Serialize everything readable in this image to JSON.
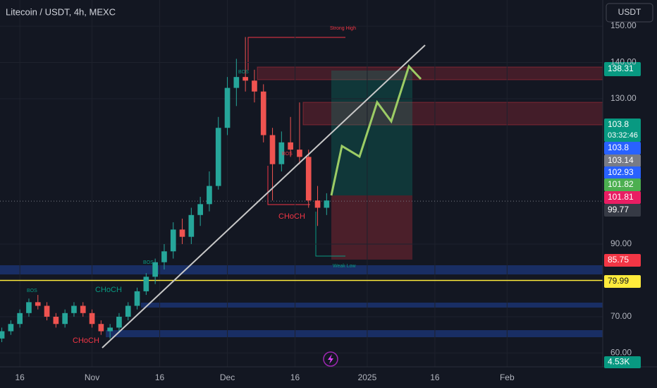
{
  "chart_data": {
    "type": "candlestick",
    "title": "Litecoin / USDT, 4h, MEXC",
    "currency": "USDT",
    "x": [
      -4,
      -2,
      0,
      2,
      4,
      6,
      8,
      10,
      12,
      14,
      16,
      18,
      20,
      22,
      24,
      26,
      28,
      30,
      32,
      34,
      36,
      38,
      40,
      42,
      44,
      46,
      48,
      50,
      52,
      54,
      56,
      58,
      60,
      62,
      64,
      66,
      68
    ],
    "open": [
      64,
      66,
      68,
      71,
      74,
      73,
      70,
      68,
      71,
      73,
      71,
      68,
      66,
      67,
      70,
      73,
      77,
      81,
      85,
      88,
      94,
      92,
      98,
      101,
      106,
      122,
      133,
      136,
      135,
      132,
      120,
      112,
      118,
      116,
      114,
      102,
      100
    ],
    "high": [
      67,
      69,
      72,
      75,
      76,
      74,
      71,
      72,
      74,
      74,
      72,
      69,
      68,
      71,
      74,
      78,
      82,
      86,
      90,
      96,
      97,
      100,
      103,
      110,
      125,
      136,
      141,
      147,
      138,
      134,
      122,
      121,
      125,
      129,
      116,
      106,
      104
    ],
    "low": [
      63,
      65,
      67,
      70,
      72,
      69,
      67,
      67,
      70,
      70,
      67,
      65,
      64,
      66,
      69,
      72,
      76,
      79,
      83,
      86,
      90,
      90,
      95,
      99,
      105,
      120,
      128,
      132,
      129,
      118,
      102,
      110,
      114,
      112,
      100,
      95,
      98
    ],
    "close": [
      66,
      68,
      71,
      74,
      73,
      70,
      68,
      71,
      73,
      71,
      68,
      66,
      67,
      70,
      73,
      77,
      81,
      85,
      88,
      94,
      92,
      98,
      101,
      106,
      122,
      133,
      136,
      135,
      132,
      120,
      112,
      118,
      116,
      114,
      102,
      100,
      102
    ],
    "up_color": "#26a69a",
    "down_color": "#ef5350",
    "xlim": [
      -4.4,
      129.2
    ],
    "xticks": [
      {
        "value": 0,
        "label": "16"
      },
      {
        "value": 16,
        "label": "Nov"
      },
      {
        "value": 31,
        "label": "16"
      },
      {
        "value": 46,
        "label": "Dec"
      },
      {
        "value": 61,
        "label": "16"
      },
      {
        "value": 77,
        "label": "2025"
      },
      {
        "value": 92,
        "label": "16"
      },
      {
        "value": 108,
        "label": "Feb"
      }
    ],
    "ylim": [
      56.2,
      157.2
    ],
    "yticks": [
      {
        "value": 60,
        "label": "60.00"
      },
      {
        "value": 70,
        "label": "70.00"
      },
      {
        "value": 90,
        "label": "90.00"
      },
      {
        "value": 130,
        "label": "130.00"
      },
      {
        "value": 140,
        "label": "140.00"
      },
      {
        "value": 150,
        "label": "150.00"
      }
    ],
    "grid": true,
    "price_tags": [
      {
        "value": 138.31,
        "color": "#089981"
      },
      {
        "value": 103.8,
        "color": "#089981",
        "countdown": "03:32:46"
      },
      {
        "value": 103.8,
        "color": "#2962ff"
      },
      {
        "value": 103.14,
        "color": "#787b86"
      },
      {
        "value": 102.93,
        "color": "#2962ff"
      },
      {
        "value": 101.82,
        "color": "#4caf50"
      },
      {
        "value": 101.81,
        "color": "#e91e63"
      },
      {
        "value": 99.77,
        "color": "#363a45"
      },
      {
        "value": 85.75,
        "color": "#f23645"
      },
      {
        "value": 79.99,
        "color": "#ffeb3b"
      },
      {
        "value": 4530,
        "label": "4.53K",
        "color": "#089981"
      }
    ],
    "annotations": [
      "Strong High",
      "Weak Low",
      "CHoCH",
      "CHoCH",
      "CHoCH",
      "BOS",
      "BOS",
      "BOS",
      "BOS"
    ]
  }
}
